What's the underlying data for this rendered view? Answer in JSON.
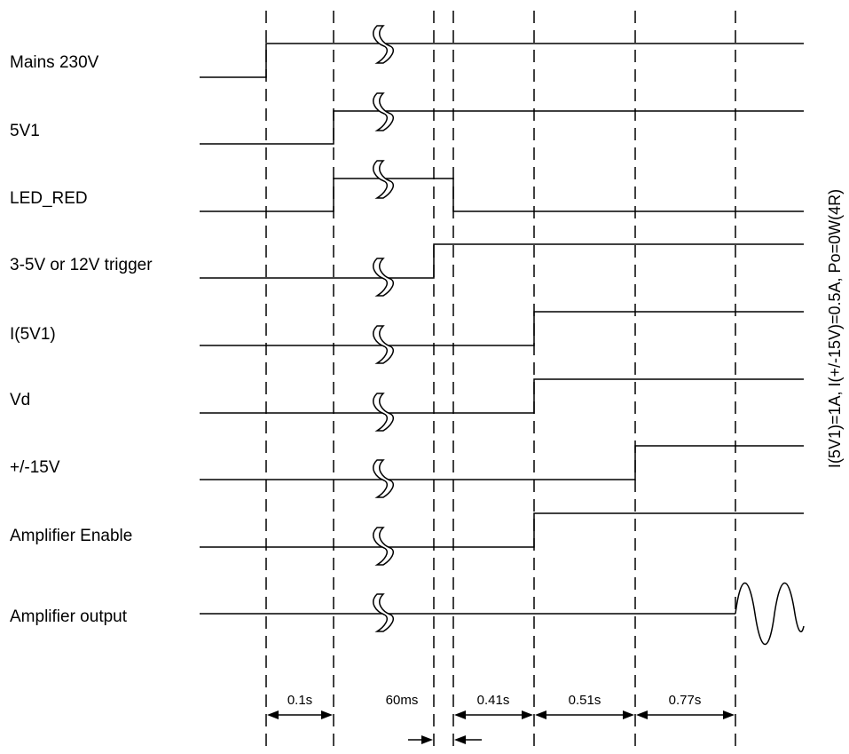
{
  "signals": [
    {
      "name": "mains",
      "label": "Mains 230V"
    },
    {
      "name": "5v1",
      "label": "5V1"
    },
    {
      "name": "led-red",
      "label": "LED_RED"
    },
    {
      "name": "trigger",
      "label": "3-5V or 12V trigger"
    },
    {
      "name": "i-5v1",
      "label": "I(5V1)"
    },
    {
      "name": "vd",
      "label": "Vd"
    },
    {
      "name": "pm15v",
      "label": "+/-15V"
    },
    {
      "name": "amp-enable",
      "label": "Amplifier Enable"
    },
    {
      "name": "amp-output",
      "label": "Amplifier output"
    }
  ],
  "intervals": [
    {
      "name": "mains-to-5v1",
      "label": "0.1s"
    },
    {
      "name": "led-to-trigger",
      "label": "60ms"
    },
    {
      "name": "trigger-to-current",
      "label": "0.41s"
    },
    {
      "name": "current-to-15v",
      "label": "0.51s"
    },
    {
      "name": "15v-to-output",
      "label": "0.77s"
    }
  ],
  "side_note": "I(5V1)=1A, I(+/-15V)=0.5A, Po=0W(4R)"
}
